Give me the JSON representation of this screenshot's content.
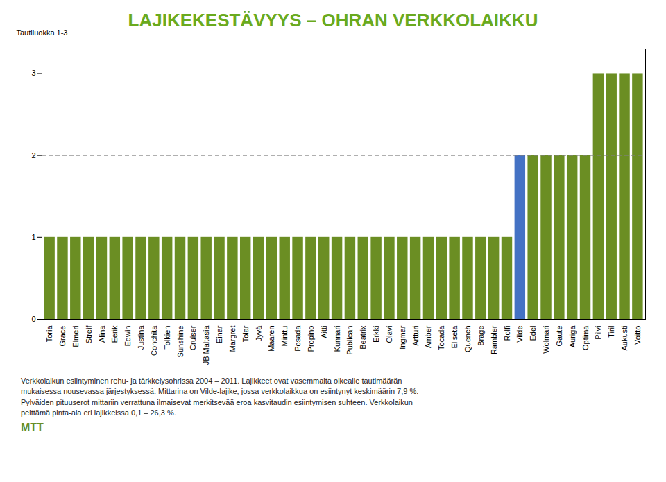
{
  "chart_data": {
    "type": "bar",
    "title": "LAJIKEKESTÄVYYS – OHRAN VERKKOLAIKKU",
    "title_color": "#6aaa1e",
    "ylabel": "Tautiluokka 1-3",
    "categories": [
      "Toria",
      "Grace",
      "Elmeri",
      "Streif",
      "Alina",
      "Eerik",
      "Edwin",
      "Justina",
      "Conchita",
      "Tolkien",
      "Sunshine",
      "Cruiser",
      "JB Maltasia",
      "Einar",
      "Margret",
      "Tolar",
      "Jyvä",
      "Maaren",
      "Minttu",
      "Posada",
      "Propino",
      "Aitti",
      "Kunnari",
      "Publican",
      "Beatrix",
      "Erkki",
      "Olavi",
      "Ingmar",
      "Artturi",
      "Amber",
      "Tocada",
      "Eliseta",
      "Quench",
      "Brage",
      "Rambler",
      "Rolfi",
      "Vilde",
      "Edel",
      "Wolmari",
      "Gaute",
      "Auriga",
      "Optima",
      "Pilvi",
      "Tiril",
      "Aukusti",
      "Voitto"
    ],
    "values": [
      1,
      1,
      1,
      1,
      1,
      1,
      1,
      1,
      1,
      1,
      1,
      1,
      1,
      1,
      1,
      1,
      1,
      1,
      1,
      1,
      1,
      1,
      1,
      1,
      1,
      1,
      1,
      1,
      1,
      1,
      1,
      1,
      1,
      1,
      1,
      1,
      2,
      2,
      2,
      2,
      2,
      2,
      3,
      3,
      3,
      3
    ],
    "colors": [
      "#6b8e23",
      "#6b8e23",
      "#6b8e23",
      "#6b8e23",
      "#6b8e23",
      "#6b8e23",
      "#6b8e23",
      "#6b8e23",
      "#6b8e23",
      "#6b8e23",
      "#6b8e23",
      "#6b8e23",
      "#6b8e23",
      "#6b8e23",
      "#6b8e23",
      "#6b8e23",
      "#6b8e23",
      "#6b8e23",
      "#6b8e23",
      "#6b8e23",
      "#6b8e23",
      "#6b8e23",
      "#6b8e23",
      "#6b8e23",
      "#6b8e23",
      "#6b8e23",
      "#6b8e23",
      "#6b8e23",
      "#6b8e23",
      "#6b8e23",
      "#6b8e23",
      "#6b8e23",
      "#6b8e23",
      "#6b8e23",
      "#6b8e23",
      "#6b8e23",
      "#4472c4",
      "#6b8e23",
      "#6b8e23",
      "#6b8e23",
      "#6b8e23",
      "#6b8e23",
      "#6b8e23",
      "#6b8e23",
      "#6b8e23",
      "#6b8e23"
    ],
    "ylim": [
      0,
      3.3
    ],
    "yticks": [
      0,
      1,
      2,
      3
    ],
    "grid": false,
    "reference_lines": [
      {
        "y": 2.0,
        "color": "#808080",
        "line_style": "dashed"
      }
    ],
    "footnote": [
      "Verkkolaikun esiintyminen rehu- ja tärkkelysohrissa 2004 – 2011. Lajikkeet ovat vasemmalta oikealle tautimäärän",
      "mukaisessa nousevassa järjestyksessä.  Mittarina on Vilde-lajike, jossa verkkolaikkua on esiintynyt keskimäärin 7,9 %.",
      "Pylväiden pituuserot mittariin verrattuna ilmaisevat merkitsevää eroa kasvitaudin esiintymisen suhteen. Verkkolaikun",
      "peittämä pinta-ala eri lajikkeissa 0,1 – 26,3 %."
    ],
    "annotations": [
      {
        "text": "MTT",
        "color": "#6b8e23"
      }
    ]
  }
}
